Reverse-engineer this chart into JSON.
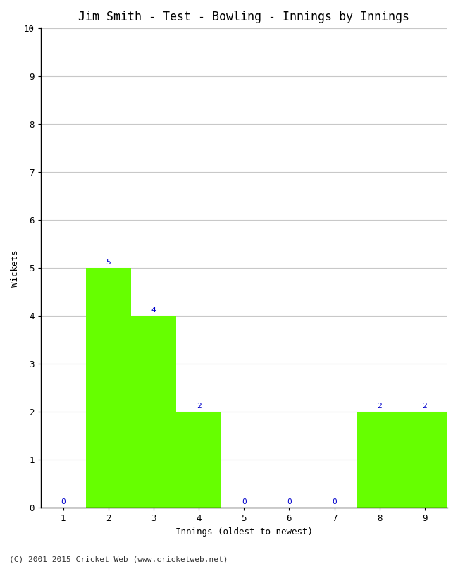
{
  "title": "Jim Smith - Test - Bowling - Innings by Innings",
  "xlabel": "Innings (oldest to newest)",
  "ylabel": "Wickets",
  "categories": [
    "1",
    "2",
    "3",
    "4",
    "5",
    "6",
    "7",
    "8",
    "9"
  ],
  "values": [
    0,
    5,
    4,
    2,
    0,
    0,
    0,
    2,
    2
  ],
  "bar_color": "#66ff00",
  "bar_edge_color": "#66ff00",
  "label_color": "#0000cc",
  "ylim": [
    0,
    10
  ],
  "yticks": [
    0,
    1,
    2,
    3,
    4,
    5,
    6,
    7,
    8,
    9,
    10
  ],
  "grid_color": "#c8c8c8",
  "background_color": "#ffffff",
  "footer": "(C) 2001-2015 Cricket Web (www.cricketweb.net)",
  "title_fontsize": 12,
  "axis_label_fontsize": 9,
  "tick_fontsize": 9,
  "annotation_fontsize": 8,
  "footer_fontsize": 8
}
